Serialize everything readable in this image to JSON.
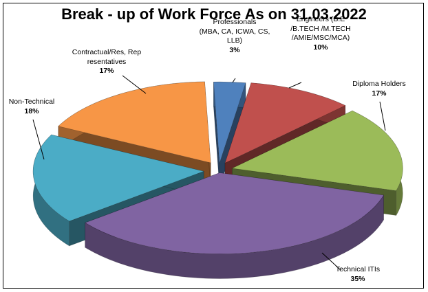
{
  "chart_data": {
    "type": "pie",
    "title": "Break - up of Work Force As on 31.03.2022",
    "slices": [
      {
        "label": "Professionals\n(MBA, CA, ICWA, CS,\nLLB)",
        "value": 3,
        "display": "3%",
        "color": "#4F81BD"
      },
      {
        "label": "Engineers (B.E\n/B.TECH /M.TECH\n/AMIE/MSC/MCA)",
        "value": 10,
        "display": "10%",
        "color": "#C0504D"
      },
      {
        "label": "Diploma Holders",
        "value": 17,
        "display": "17%",
        "color": "#9BBB59"
      },
      {
        "label": "Technical ITIs",
        "value": 35,
        "display": "35%",
        "color": "#8064A2"
      },
      {
        "label": "Non-Technical",
        "value": 18,
        "display": "18%",
        "color": "#4BACC6"
      },
      {
        "label": "Contractual/Res, Rep\nresentatives",
        "value": 17,
        "display": "17%",
        "color": "#F79646"
      }
    ],
    "style": "3d-exploded-pie"
  }
}
